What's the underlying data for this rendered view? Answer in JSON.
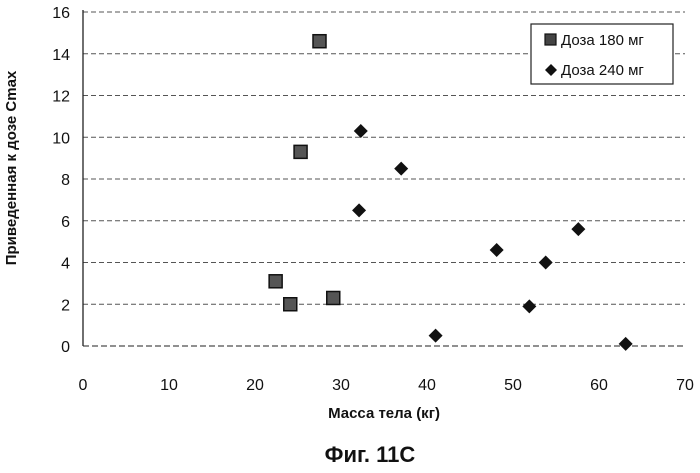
{
  "figure_caption": "Фиг. 11С",
  "chart_data": {
    "type": "scatter",
    "title": "",
    "xlabel": "Масса тела (кг)",
    "ylabel": "Приведенная к дозе Cmax",
    "xlim": [
      0,
      70
    ],
    "ylim": [
      0,
      16
    ],
    "x_ticks": [
      "0",
      "10",
      "20",
      "30",
      "40",
      "50",
      "60",
      "70"
    ],
    "y_ticks": [
      "0",
      "2",
      "4",
      "6",
      "8",
      "10",
      "12",
      "14",
      "16"
    ],
    "grid": "horizontal",
    "legend_position": "top-right",
    "series": [
      {
        "name": "Доза 180 мг",
        "marker": "square",
        "color": "#333333",
        "points": [
          {
            "x": 27.5,
            "y": 14.6
          },
          {
            "x": 25.3,
            "y": 9.3
          },
          {
            "x": 22.4,
            "y": 3.1
          },
          {
            "x": 24.1,
            "y": 2.0
          },
          {
            "x": 29.1,
            "y": 2.3
          }
        ]
      },
      {
        "name": "Доза 240 мг",
        "marker": "diamond",
        "color": "#111111",
        "points": [
          {
            "x": 32.3,
            "y": 10.3
          },
          {
            "x": 37.0,
            "y": 8.5
          },
          {
            "x": 32.1,
            "y": 6.5
          },
          {
            "x": 48.1,
            "y": 4.6
          },
          {
            "x": 57.6,
            "y": 5.6
          },
          {
            "x": 53.8,
            "y": 4.0
          },
          {
            "x": 51.9,
            "y": 1.9
          },
          {
            "x": 41.0,
            "y": 0.5
          },
          {
            "x": 63.1,
            "y": 0.1
          }
        ]
      }
    ]
  }
}
